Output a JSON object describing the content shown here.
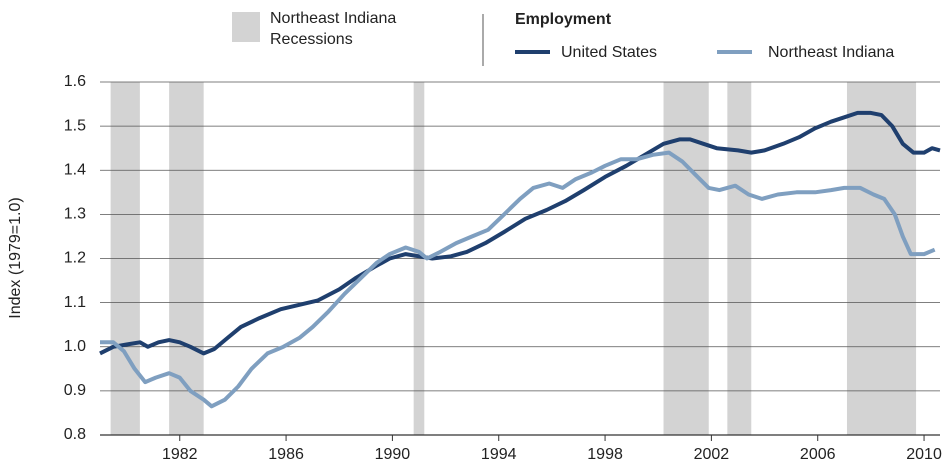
{
  "chart_data": {
    "type": "line",
    "y_label": "Index (1979=1.0)",
    "legend_title": "Employment",
    "recession_label": "Northeast Indiana Recessions",
    "recession_color": "#d3d3d3",
    "recessions": [
      [
        1979.4,
        1980.5
      ],
      [
        1981.6,
        1982.9
      ],
      [
        1990.8,
        1991.2
      ],
      [
        2000.2,
        2001.9
      ],
      [
        2002.6,
        2003.5
      ],
      [
        2007.1,
        2009.7
      ]
    ],
    "xlim": [
      1979,
      2010.6
    ],
    "xticks": [
      1982,
      1986,
      1990,
      1994,
      1998,
      2002,
      2006,
      2010
    ],
    "ylim": [
      0.8,
      1.6
    ],
    "yticks": [
      0.8,
      0.9,
      {
        "value": 1.0,
        "label": "1.0"
      },
      1.1,
      1.2,
      1.3,
      1.4,
      1.5,
      1.6
    ],
    "grid": true,
    "series": [
      {
        "name": "United States",
        "color": "#1f3f6e",
        "x": [
          1979.0,
          1979.5,
          1980.0,
          1980.5,
          1980.8,
          1981.2,
          1981.6,
          1982.0,
          1982.4,
          1982.9,
          1983.3,
          1983.8,
          1984.3,
          1985.0,
          1985.8,
          1986.5,
          1987.2,
          1988.0,
          1988.6,
          1989.3,
          1989.9,
          1990.5,
          1991.0,
          1991.5,
          1992.2,
          1992.8,
          1993.5,
          1994.2,
          1995.0,
          1995.8,
          1996.5,
          1997.2,
          1998.0,
          1998.8,
          1999.5,
          2000.2,
          2000.8,
          2001.2,
          2001.7,
          2002.2,
          2003.0,
          2003.5,
          2004.0,
          2004.7,
          2005.3,
          2005.9,
          2006.5,
          2007.0,
          2007.5,
          2008.0,
          2008.4,
          2008.8,
          2009.2,
          2009.6,
          2010.0,
          2010.3,
          2010.6
        ],
        "values": [
          0.985,
          1.0,
          1.005,
          1.01,
          1.0,
          1.01,
          1.015,
          1.01,
          1.0,
          0.985,
          0.995,
          1.02,
          1.045,
          1.065,
          1.085,
          1.095,
          1.105,
          1.13,
          1.155,
          1.18,
          1.2,
          1.21,
          1.205,
          1.2,
          1.205,
          1.215,
          1.235,
          1.26,
          1.29,
          1.31,
          1.33,
          1.355,
          1.385,
          1.41,
          1.435,
          1.46,
          1.47,
          1.47,
          1.46,
          1.45,
          1.445,
          1.44,
          1.445,
          1.46,
          1.475,
          1.495,
          1.51,
          1.52,
          1.53,
          1.53,
          1.525,
          1.5,
          1.46,
          1.44,
          1.44,
          1.45,
          1.445
        ]
      },
      {
        "name": "Northeast Indiana",
        "color": "#7f9fc0",
        "x": [
          1979.0,
          1979.5,
          1979.9,
          1980.3,
          1980.7,
          1981.1,
          1981.6,
          1982.0,
          1982.4,
          1982.9,
          1983.2,
          1983.7,
          1984.2,
          1984.7,
          1985.3,
          1985.9,
          1986.5,
          1987.0,
          1987.6,
          1988.2,
          1988.8,
          1989.4,
          1989.9,
          1990.5,
          1991.0,
          1991.3,
          1991.8,
          1992.4,
          1993.0,
          1993.6,
          1994.2,
          1994.8,
          1995.3,
          1995.9,
          1996.4,
          1996.9,
          1997.5,
          1998.0,
          1998.6,
          1999.2,
          1999.8,
          2000.4,
          2000.9,
          2001.4,
          2001.9,
          2002.3,
          2002.9,
          2003.4,
          2003.9,
          2004.5,
          2005.2,
          2005.9,
          2006.5,
          2007.0,
          2007.6,
          2008.1,
          2008.5,
          2008.9,
          2009.2,
          2009.5,
          2010.0,
          2010.4
        ],
        "values": [
          1.01,
          1.01,
          0.99,
          0.95,
          0.92,
          0.93,
          0.94,
          0.93,
          0.9,
          0.88,
          0.865,
          0.88,
          0.91,
          0.95,
          0.985,
          1.0,
          1.02,
          1.045,
          1.08,
          1.12,
          1.155,
          1.19,
          1.21,
          1.225,
          1.215,
          1.2,
          1.215,
          1.235,
          1.25,
          1.265,
          1.3,
          1.335,
          1.36,
          1.37,
          1.36,
          1.38,
          1.395,
          1.41,
          1.425,
          1.425,
          1.435,
          1.44,
          1.42,
          1.39,
          1.36,
          1.355,
          1.365,
          1.345,
          1.335,
          1.345,
          1.35,
          1.35,
          1.355,
          1.36,
          1.36,
          1.345,
          1.335,
          1.3,
          1.25,
          1.21,
          1.21,
          1.22
        ]
      }
    ]
  }
}
